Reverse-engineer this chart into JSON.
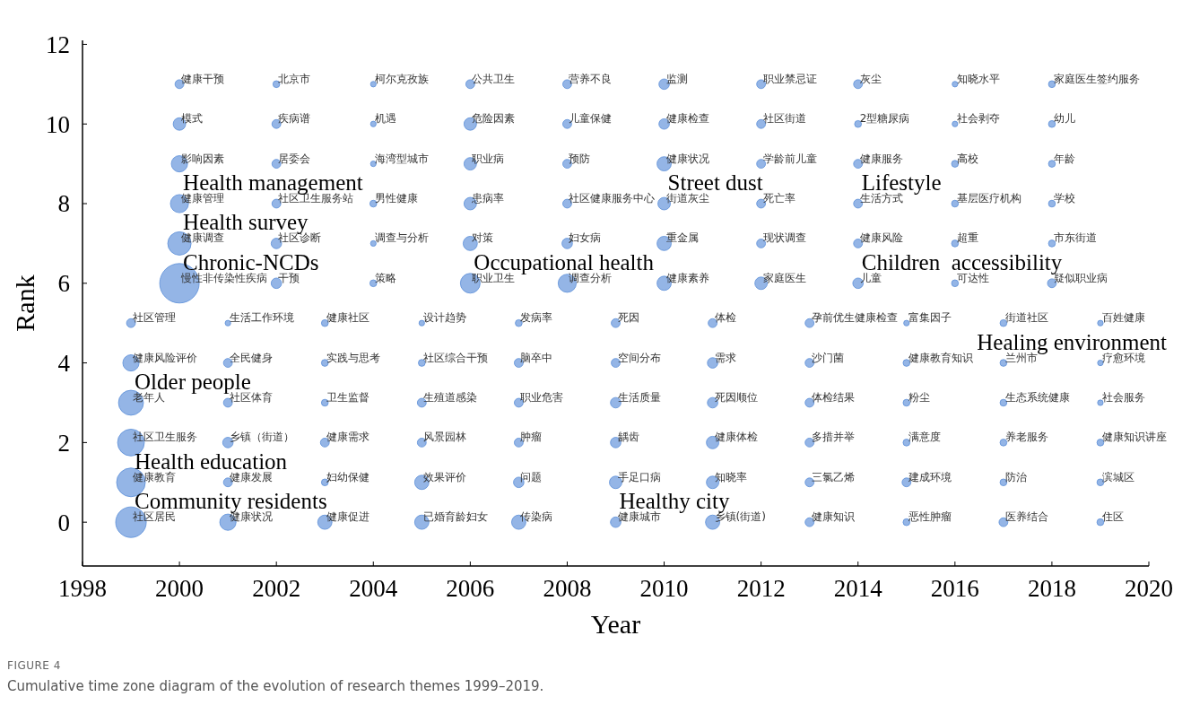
{
  "chart_data": {
    "type": "bubble",
    "title": "FIGURE 4",
    "subtitle": "Cumulative time zone diagram of the evolution of research themes 1999–2019.",
    "xlabel": "Year",
    "ylabel": "Rank",
    "xlim": [
      1998,
      2020
    ],
    "xticks": [
      1998,
      2000,
      2002,
      2004,
      2006,
      2008,
      2010,
      2012,
      2014,
      2016,
      2018,
      2020
    ],
    "ylim": [
      -1.1,
      12.1
    ],
    "yticks": [
      0,
      2,
      4,
      6,
      8,
      10,
      12
    ],
    "grid": false,
    "series": [
      {
        "color": "#5b8ed8",
        "x": [
          2000,
          2002,
          2004,
          2006,
          2008,
          2010,
          2012,
          2014,
          2016,
          2018,
          2000,
          2002,
          2004,
          2006,
          2008,
          2010,
          2012,
          2014,
          2016,
          2018,
          2000,
          2002,
          2004,
          2006,
          2008,
          2010,
          2012,
          2014,
          2016,
          2018,
          2000,
          2002,
          2004,
          2006,
          2008,
          2010,
          2012,
          2014,
          2016,
          2018,
          2000,
          2002,
          2004,
          2006,
          2008,
          2010,
          2012,
          2014,
          2016,
          2018,
          2000,
          2002,
          2004,
          2006,
          2008,
          2010,
          2012,
          2014,
          2016,
          2018,
          1999,
          2001,
          2003,
          2005,
          2007,
          2009,
          2011,
          2013,
          2015,
          2017,
          2019,
          1999,
          2001,
          2003,
          2005,
          2007,
          2009,
          2011,
          2013,
          2015,
          2017,
          2019,
          1999,
          2001,
          2003,
          2005,
          2007,
          2009,
          2011,
          2013,
          2015,
          2017,
          2019,
          1999,
          2001,
          2003,
          2005,
          2007,
          2009,
          2011,
          2013,
          2015,
          2017,
          2019,
          1999,
          2001,
          2003,
          2005,
          2007,
          2009,
          2011,
          2013,
          2015,
          2017,
          2019,
          1999,
          2001,
          2003,
          2005,
          2007,
          2009,
          2011,
          2013,
          2015,
          2017,
          2019
        ],
        "values": [
          11,
          11,
          11,
          11,
          11,
          11,
          11,
          11,
          11,
          11,
          10,
          10,
          10,
          10,
          10,
          10,
          10,
          10,
          10,
          10,
          9,
          9,
          9,
          9,
          9,
          9,
          9,
          9,
          9,
          9,
          8,
          8,
          8,
          8,
          8,
          8,
          8,
          8,
          8,
          8,
          7,
          7,
          7,
          7,
          7,
          7,
          7,
          7,
          7,
          7,
          6,
          6,
          6,
          6,
          6,
          6,
          6,
          6,
          6,
          6,
          5,
          5,
          5,
          5,
          5,
          5,
          5,
          5,
          5,
          5,
          5,
          4,
          4,
          4,
          4,
          4,
          4,
          4,
          4,
          4,
          4,
          4,
          3,
          3,
          3,
          3,
          3,
          3,
          3,
          3,
          3,
          3,
          3,
          2,
          2,
          2,
          2,
          2,
          2,
          2,
          2,
          2,
          2,
          2,
          1,
          1,
          1,
          1,
          1,
          1,
          1,
          1,
          1,
          1,
          1,
          0,
          0,
          0,
          0,
          0,
          0,
          0,
          0,
          0,
          0,
          0
        ],
        "sizes": [
          0.05,
          0.03,
          0.02,
          0.05,
          0.05,
          0.07,
          0.05,
          0.05,
          0.02,
          0.03,
          0.1,
          0.05,
          0.02,
          0.1,
          0.05,
          0.07,
          0.05,
          0.03,
          0.02,
          0.03,
          0.17,
          0.05,
          0.02,
          0.1,
          0.05,
          0.13,
          0.05,
          0.05,
          0.03,
          0.03,
          0.21,
          0.05,
          0.03,
          0.1,
          0.05,
          0.1,
          0.05,
          0.05,
          0.03,
          0.03,
          0.35,
          0.07,
          0.02,
          0.13,
          0.07,
          0.13,
          0.05,
          0.05,
          0.03,
          0.03,
          1,
          0.07,
          0.03,
          0.25,
          0.21,
          0.13,
          0.1,
          0.07,
          0.03,
          0.05,
          0.05,
          0.02,
          0.03,
          0.02,
          0.03,
          0.05,
          0.05,
          0.05,
          0.02,
          0.03,
          0.02,
          0.17,
          0.05,
          0.03,
          0.03,
          0.05,
          0.05,
          0.07,
          0.05,
          0.03,
          0.03,
          0.02,
          0.4,
          0.05,
          0.03,
          0.05,
          0.05,
          0.07,
          0.07,
          0.05,
          0.03,
          0.03,
          0.02,
          0.46,
          0.07,
          0.05,
          0.05,
          0.05,
          0.07,
          0.1,
          0.05,
          0.03,
          0.03,
          0.03,
          0.53,
          0.05,
          0.03,
          0.13,
          0.07,
          0.1,
          0.1,
          0.05,
          0.05,
          0.03,
          0.03,
          0.6,
          0.17,
          0.13,
          0.13,
          0.13,
          0.07,
          0.13,
          0.05,
          0.03,
          0.05,
          0.03
        ]
      }
    ],
    "annotations": [
      {
        "text": "健康干预",
        "x": 2000,
        "y": 11
      },
      {
        "text": "北京市",
        "x": 2002,
        "y": 11
      },
      {
        "text": "柯尔克孜族",
        "x": 2004,
        "y": 11
      },
      {
        "text": "公共卫生",
        "x": 2006,
        "y": 11
      },
      {
        "text": "营养不良",
        "x": 2008,
        "y": 11
      },
      {
        "text": "监测",
        "x": 2010,
        "y": 11
      },
      {
        "text": "职业禁忌证",
        "x": 2012,
        "y": 11
      },
      {
        "text": "灰尘",
        "x": 2014,
        "y": 11
      },
      {
        "text": "知晓水平",
        "x": 2016,
        "y": 11
      },
      {
        "text": "家庭医生签约服务",
        "x": 2018,
        "y": 11
      },
      {
        "text": "模式",
        "x": 2000,
        "y": 10
      },
      {
        "text": "疾病谱",
        "x": 2002,
        "y": 10
      },
      {
        "text": "机遇",
        "x": 2004,
        "y": 10
      },
      {
        "text": "危险因素",
        "x": 2006,
        "y": 10
      },
      {
        "text": "儿童保健",
        "x": 2008,
        "y": 10
      },
      {
        "text": "健康检查",
        "x": 2010,
        "y": 10
      },
      {
        "text": "社区街道",
        "x": 2012,
        "y": 10
      },
      {
        "text": "2型糖尿病",
        "x": 2014,
        "y": 10
      },
      {
        "text": "社会剥夺",
        "x": 2016,
        "y": 10
      },
      {
        "text": "幼儿",
        "x": 2018,
        "y": 10
      },
      {
        "text": "影响因素",
        "x": 2000,
        "y": 9
      },
      {
        "text": "居委会",
        "x": 2002,
        "y": 9
      },
      {
        "text": "海湾型城市",
        "x": 2004,
        "y": 9
      },
      {
        "text": "职业病",
        "x": 2006,
        "y": 9
      },
      {
        "text": "预防",
        "x": 2008,
        "y": 9
      },
      {
        "text": "健康状况",
        "x": 2010,
        "y": 9
      },
      {
        "text": "学龄前儿童",
        "x": 2012,
        "y": 9
      },
      {
        "text": "健康服务",
        "x": 2014,
        "y": 9
      },
      {
        "text": "高校",
        "x": 2016,
        "y": 9
      },
      {
        "text": "年龄",
        "x": 2018,
        "y": 9
      },
      {
        "text": "健康管理",
        "x": 2000,
        "y": 8
      },
      {
        "text": "社区卫生服务站",
        "x": 2002,
        "y": 8
      },
      {
        "text": "男性健康",
        "x": 2004,
        "y": 8
      },
      {
        "text": "患病率",
        "x": 2006,
        "y": 8
      },
      {
        "text": "社区健康服务中心",
        "x": 2008,
        "y": 8
      },
      {
        "text": "街道灰尘",
        "x": 2010,
        "y": 8
      },
      {
        "text": "死亡率",
        "x": 2012,
        "y": 8
      },
      {
        "text": "生活方式",
        "x": 2014,
        "y": 8
      },
      {
        "text": "基层医疗机构",
        "x": 2016,
        "y": 8
      },
      {
        "text": "学校",
        "x": 2018,
        "y": 8
      },
      {
        "text": "健康调查",
        "x": 2000,
        "y": 7
      },
      {
        "text": "社区诊断",
        "x": 2002,
        "y": 7
      },
      {
        "text": "调查与分析",
        "x": 2004,
        "y": 7
      },
      {
        "text": "对策",
        "x": 2006,
        "y": 7
      },
      {
        "text": "妇女病",
        "x": 2008,
        "y": 7
      },
      {
        "text": "重金属",
        "x": 2010,
        "y": 7
      },
      {
        "text": "现状调查",
        "x": 2012,
        "y": 7
      },
      {
        "text": "健康风险",
        "x": 2014,
        "y": 7
      },
      {
        "text": "超重",
        "x": 2016,
        "y": 7
      },
      {
        "text": "市东街道",
        "x": 2018,
        "y": 7
      },
      {
        "text": "慢性非传染性疾病",
        "x": 2000,
        "y": 6
      },
      {
        "text": "干预",
        "x": 2002,
        "y": 6
      },
      {
        "text": "策略",
        "x": 2004,
        "y": 6
      },
      {
        "text": "职业卫生",
        "x": 2006,
        "y": 6
      },
      {
        "text": "调查分析",
        "x": 2008,
        "y": 6
      },
      {
        "text": "健康素养",
        "x": 2010,
        "y": 6
      },
      {
        "text": "家庭医生",
        "x": 2012,
        "y": 6
      },
      {
        "text": "儿童",
        "x": 2014,
        "y": 6
      },
      {
        "text": "可达性",
        "x": 2016,
        "y": 6
      },
      {
        "text": "疑似职业病",
        "x": 2018,
        "y": 6
      },
      {
        "text": "社区管理",
        "x": 1999,
        "y": 5
      },
      {
        "text": "生活工作环境",
        "x": 2001,
        "y": 5
      },
      {
        "text": "健康社区",
        "x": 2003,
        "y": 5
      },
      {
        "text": "设计趋势",
        "x": 2005,
        "y": 5
      },
      {
        "text": "发病率",
        "x": 2007,
        "y": 5
      },
      {
        "text": "死因",
        "x": 2009,
        "y": 5
      },
      {
        "text": "体检",
        "x": 2011,
        "y": 5
      },
      {
        "text": "孕前优生健康检查",
        "x": 2013,
        "y": 5
      },
      {
        "text": "富集因子",
        "x": 2015,
        "y": 5
      },
      {
        "text": "街道社区",
        "x": 2017,
        "y": 5
      },
      {
        "text": "百姓健康",
        "x": 2019,
        "y": 5
      },
      {
        "text": "健康风险评价",
        "x": 1999,
        "y": 4
      },
      {
        "text": "全民健身",
        "x": 2001,
        "y": 4
      },
      {
        "text": "实践与思考",
        "x": 2003,
        "y": 4
      },
      {
        "text": "社区综合干预",
        "x": 2005,
        "y": 4
      },
      {
        "text": "脑卒中",
        "x": 2007,
        "y": 4
      },
      {
        "text": "空间分布",
        "x": 2009,
        "y": 4
      },
      {
        "text": "需求",
        "x": 2011,
        "y": 4
      },
      {
        "text": "沙门菌",
        "x": 2013,
        "y": 4
      },
      {
        "text": "健康教育知识",
        "x": 2015,
        "y": 4
      },
      {
        "text": "兰州市",
        "x": 2017,
        "y": 4
      },
      {
        "text": "疗愈环境",
        "x": 2019,
        "y": 4
      },
      {
        "text": "老年人",
        "x": 1999,
        "y": 3
      },
      {
        "text": "社区体育",
        "x": 2001,
        "y": 3
      },
      {
        "text": "卫生监督",
        "x": 2003,
        "y": 3
      },
      {
        "text": "生殖道感染",
        "x": 2005,
        "y": 3
      },
      {
        "text": "职业危害",
        "x": 2007,
        "y": 3
      },
      {
        "text": "生活质量",
        "x": 2009,
        "y": 3
      },
      {
        "text": "死因顺位",
        "x": 2011,
        "y": 3
      },
      {
        "text": "体检结果",
        "x": 2013,
        "y": 3
      },
      {
        "text": "粉尘",
        "x": 2015,
        "y": 3
      },
      {
        "text": "生态系统健康",
        "x": 2017,
        "y": 3
      },
      {
        "text": "社会服务",
        "x": 2019,
        "y": 3
      },
      {
        "text": "社区卫生服务",
        "x": 1999,
        "y": 2
      },
      {
        "text": "乡镇（街道）",
        "x": 2001,
        "y": 2
      },
      {
        "text": "健康需求",
        "x": 2003,
        "y": 2
      },
      {
        "text": "风景园林",
        "x": 2005,
        "y": 2
      },
      {
        "text": "肿瘤",
        "x": 2007,
        "y": 2
      },
      {
        "text": "龋齿",
        "x": 2009,
        "y": 2
      },
      {
        "text": "健康体检",
        "x": 2011,
        "y": 2
      },
      {
        "text": "多措并举",
        "x": 2013,
        "y": 2
      },
      {
        "text": "满意度",
        "x": 2015,
        "y": 2
      },
      {
        "text": "养老服务",
        "x": 2017,
        "y": 2
      },
      {
        "text": "健康知识讲座",
        "x": 2019,
        "y": 2
      },
      {
        "text": "健康教育",
        "x": 1999,
        "y": 1
      },
      {
        "text": "健康发展",
        "x": 2001,
        "y": 1
      },
      {
        "text": "妇幼保健",
        "x": 2003,
        "y": 1
      },
      {
        "text": "效果评价",
        "x": 2005,
        "y": 1
      },
      {
        "text": "问题",
        "x": 2007,
        "y": 1
      },
      {
        "text": "手足口病",
        "x": 2009,
        "y": 1
      },
      {
        "text": "知晓率",
        "x": 2011,
        "y": 1
      },
      {
        "text": "三氯乙烯",
        "x": 2013,
        "y": 1
      },
      {
        "text": "建成环境",
        "x": 2015,
        "y": 1
      },
      {
        "text": "防治",
        "x": 2017,
        "y": 1
      },
      {
        "text": "滨城区",
        "x": 2019,
        "y": 1
      },
      {
        "text": "社区居民",
        "x": 1999,
        "y": 0
      },
      {
        "text": "健康状况",
        "x": 2001,
        "y": 0
      },
      {
        "text": "健康促进",
        "x": 2003,
        "y": 0
      },
      {
        "text": "已婚育龄妇女",
        "x": 2005,
        "y": 0
      },
      {
        "text": "传染病",
        "x": 2007,
        "y": 0
      },
      {
        "text": "健康城市",
        "x": 2009,
        "y": 0
      },
      {
        "text": "乡镇(街道)",
        "x": 2011,
        "y": 0
      },
      {
        "text": "健康知识",
        "x": 2013,
        "y": 0
      },
      {
        "text": "恶性肿瘤",
        "x": 2015,
        "y": 0
      },
      {
        "text": "医养结合",
        "x": 2017,
        "y": 0
      },
      {
        "text": "住区",
        "x": 2019,
        "y": 0
      },
      {
        "text": "Health management",
        "x": 2000,
        "y": 8
      },
      {
        "text": "Health survey",
        "x": 2000,
        "y": 7
      },
      {
        "text": "Chronic-NCDs",
        "x": 2000,
        "y": 6
      },
      {
        "text": "Street dust",
        "x": 2010,
        "y": 8
      },
      {
        "text": "Lifestyle",
        "x": 2014,
        "y": 8
      },
      {
        "text": "Occupational health",
        "x": 2006,
        "y": 6
      },
      {
        "text": "Children  accessibility",
        "x": 2014,
        "y": 6
      },
      {
        "text": "Healing environment",
        "x": 2019,
        "y": 4
      },
      {
        "text": "Older people",
        "x": 1999,
        "y": 3
      },
      {
        "text": "Health education",
        "x": 1999,
        "y": 1
      },
      {
        "text": "Community residents",
        "x": 1999,
        "y": 0
      },
      {
        "text": "Healthy city",
        "x": 2009,
        "y": 0
      }
    ]
  }
}
